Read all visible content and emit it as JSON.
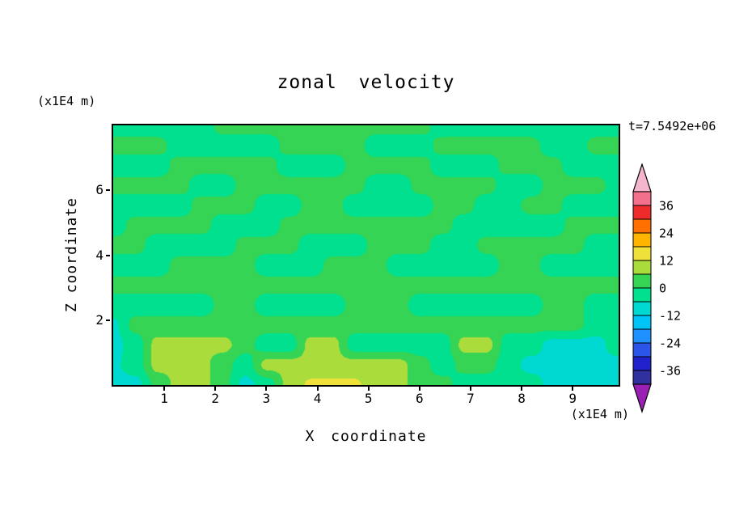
{
  "chart_data": {
    "type": "filled_contour",
    "title": "zonal velocity",
    "time_annotation": "t=7.5492e+06",
    "xlabel": "X coordinate",
    "ylabel": "Z coordinate",
    "x_unit": "(x1E4 m)",
    "y_unit": "(x1E4 m)",
    "x_range": [
      0,
      9.9
    ],
    "z_range": [
      0,
      8
    ],
    "x_ticks": [
      1,
      2,
      3,
      4,
      5,
      6,
      7,
      8,
      9
    ],
    "y_ticks": [
      2,
      4,
      6
    ],
    "colorbar": {
      "level_min": -42,
      "level_step": 6,
      "tick_labels": [
        "36",
        "24",
        "12",
        "0",
        "-12",
        "-24",
        "-36"
      ],
      "band_colors_low_to_high": [
        "#30309E",
        "#2222CC",
        "#2B55E8",
        "#1E90FF",
        "#00C4F5",
        "#00D9D2",
        "#00E08E",
        "#35D455",
        "#AADC3C",
        "#F0E03A",
        "#FFB400",
        "#FF7000",
        "#EE2B2B",
        "#F2708C"
      ],
      "under_arrow_color": "#9A1FB4",
      "over_arrow_color": "#F5B5CC"
    },
    "field": {
      "nx": 24,
      "nz": 14,
      "values": [
        [
          -3,
          -3,
          -3,
          -3,
          -3,
          2,
          2,
          2,
          2,
          2,
          2,
          2,
          2,
          2,
          2,
          -3,
          -3,
          -3,
          -3,
          -3,
          -3,
          -3,
          -3,
          -3
        ],
        [
          2,
          2,
          2,
          -3,
          -3,
          -3,
          -3,
          -3,
          2,
          2,
          2,
          2,
          -3,
          -3,
          -3,
          2,
          2,
          2,
          2,
          2,
          -3,
          -3,
          2,
          2
        ],
        [
          -3,
          -3,
          -3,
          2,
          2,
          2,
          2,
          2,
          -3,
          -3,
          -3,
          2,
          2,
          2,
          2,
          -3,
          -3,
          -3,
          2,
          2,
          2,
          -3,
          -3,
          -3
        ],
        [
          2,
          2,
          2,
          2,
          -3,
          -3,
          2,
          2,
          2,
          2,
          2,
          2,
          -3,
          -3,
          2,
          2,
          2,
          2,
          -3,
          -3,
          2,
          2,
          2,
          -3
        ],
        [
          -3,
          -3,
          -3,
          -3,
          2,
          2,
          2,
          -3,
          -3,
          2,
          2,
          -3,
          -3,
          -3,
          -3,
          2,
          2,
          -3,
          -3,
          2,
          2,
          -3,
          -3,
          -3
        ],
        [
          -3,
          2,
          2,
          2,
          2,
          -3,
          -3,
          -3,
          2,
          2,
          2,
          2,
          2,
          2,
          2,
          2,
          -3,
          -3,
          -3,
          -3,
          -3,
          2,
          2,
          2
        ],
        [
          2,
          2,
          -3,
          -3,
          -3,
          -3,
          2,
          2,
          2,
          -3,
          -3,
          -3,
          2,
          2,
          2,
          -3,
          -3,
          2,
          2,
          2,
          2,
          2,
          -3,
          -3
        ],
        [
          -3,
          -3,
          -3,
          2,
          2,
          2,
          2,
          -3,
          -3,
          -3,
          2,
          2,
          2,
          -3,
          -3,
          -3,
          -3,
          -3,
          2,
          2,
          -3,
          -3,
          -3,
          -3
        ],
        [
          2,
          2,
          2,
          2,
          2,
          2,
          2,
          2,
          2,
          2,
          2,
          2,
          2,
          2,
          2,
          2,
          2,
          2,
          2,
          2,
          2,
          2,
          2,
          2
        ],
        [
          -3,
          -3,
          -3,
          -3,
          -3,
          2,
          2,
          -3,
          -3,
          -3,
          -3,
          2,
          2,
          2,
          -3,
          -3,
          -3,
          -3,
          -3,
          -3,
          2,
          2,
          -3,
          -3
        ],
        [
          -7,
          2,
          2,
          2,
          2,
          2,
          2,
          2,
          2,
          2,
          2,
          2,
          2,
          2,
          2,
          2,
          2,
          2,
          2,
          2,
          2,
          2,
          -3,
          -3
        ],
        [
          -8,
          -3,
          8,
          8,
          8,
          8,
          2,
          -3,
          -3,
          8,
          8,
          -3,
          -3,
          -3,
          -3,
          -3,
          8,
          8,
          -3,
          -3,
          -8,
          -8,
          -8,
          -3
        ],
        [
          -7,
          -3,
          8,
          8,
          8,
          2,
          -3,
          8,
          8,
          8,
          8,
          8,
          8,
          8,
          2,
          -3,
          2,
          2,
          -3,
          -8,
          -8,
          -8,
          -8,
          -8
        ],
        [
          -8,
          -8,
          2,
          8,
          8,
          2,
          -8,
          -3,
          8,
          13,
          13,
          13,
          8,
          8,
          2,
          2,
          -3,
          -3,
          -3,
          -3,
          -8,
          -8,
          -8,
          -8
        ]
      ]
    }
  }
}
